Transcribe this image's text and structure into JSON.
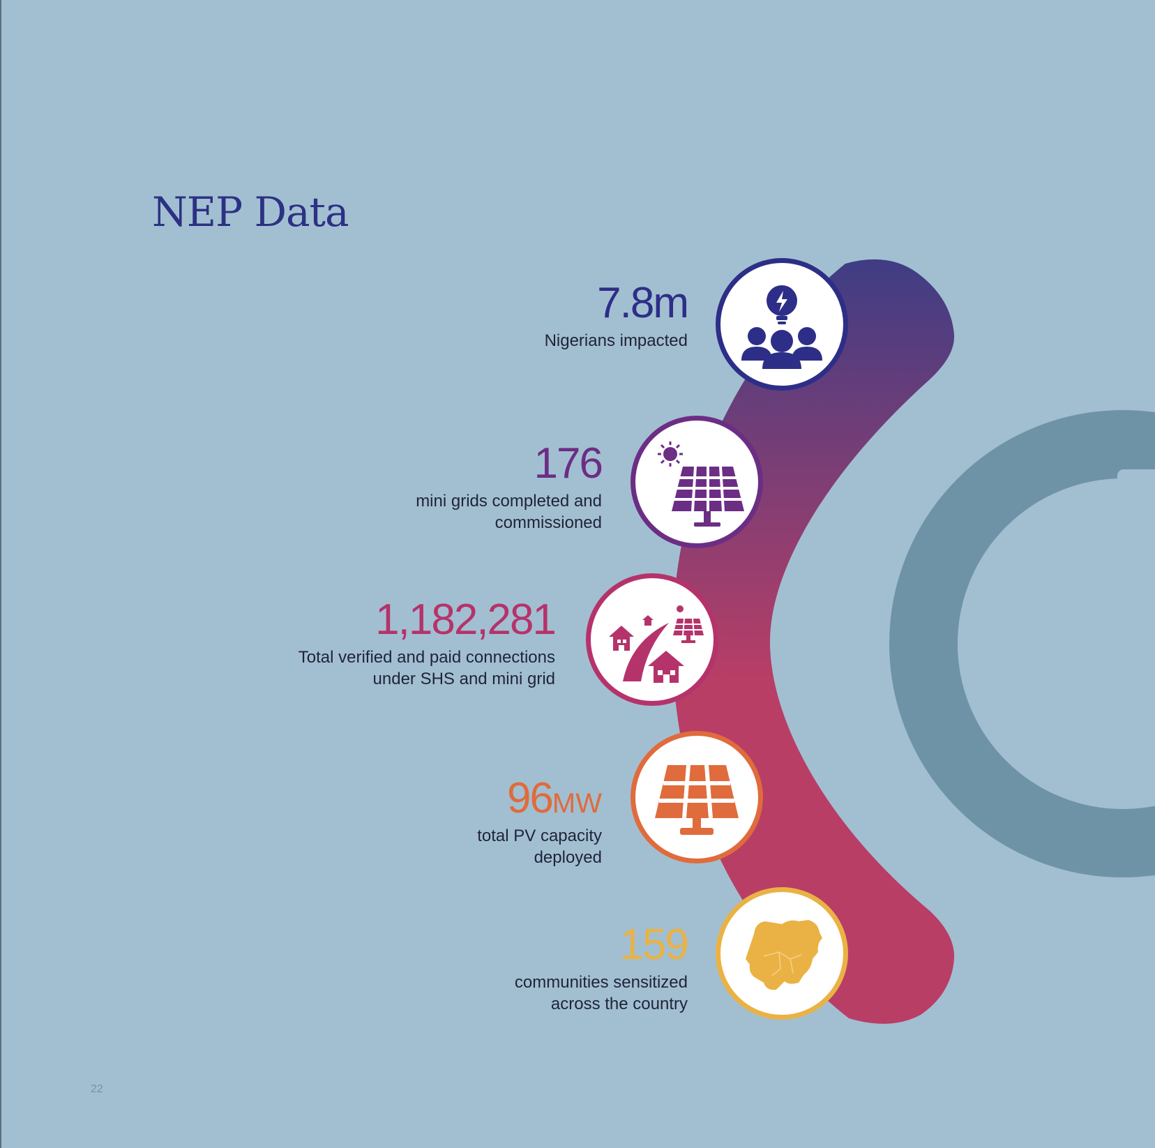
{
  "page": {
    "title": "NEP Data",
    "page_number": "22"
  },
  "stats": [
    {
      "value": "7.8m",
      "value_unit": "",
      "label_line1": "Nigerians impacted",
      "label_line2": "",
      "color": "#2d2e87",
      "icon": "people-lightbulb-icon"
    },
    {
      "value": "176",
      "value_unit": "",
      "label_line1": "mini grids completed and",
      "label_line2": "commissioned",
      "color": "#6c2d84",
      "icon": "solar-panel-sun-icon"
    },
    {
      "value": "1,182,281",
      "value_unit": "",
      "label_line1": "Total verified and paid connections",
      "label_line2": "under SHS and mini grid",
      "color": "#b5336b",
      "icon": "houses-connection-icon"
    },
    {
      "value": "96",
      "value_unit": "MW",
      "label_line1": "total PV capacity",
      "label_line2": "deployed",
      "color": "#e06b3c",
      "icon": "pv-panel-icon"
    },
    {
      "value": "159",
      "value_unit": "",
      "label_line1": "communities sensitized",
      "label_line2": "across the country",
      "color": "#eab244",
      "icon": "nigeria-map-icon"
    }
  ],
  "colors": {
    "background": "#a2bfd1",
    "arc_top": "#3f3d84",
    "arc_bottom": "#b83e66",
    "ring": "#6f93a6"
  }
}
